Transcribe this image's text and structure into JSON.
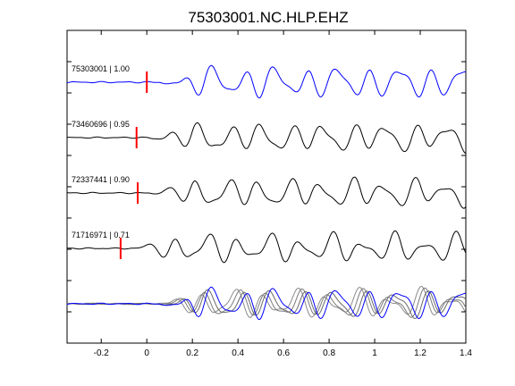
{
  "chart_data": {
    "type": "line",
    "title": "75303001.NC.HLP.EHZ",
    "xlabel": "",
    "ylabel": "",
    "xlim": [
      -0.35,
      1.4
    ],
    "xticks": [
      -0.2,
      0,
      0.2,
      0.4,
      0.6,
      0.8,
      1,
      1.2,
      1.4
    ],
    "xtick_labels": [
      "-0.2",
      "0",
      "0.2",
      "0.4",
      "0.6",
      "0.8",
      "1",
      "1.2",
      "1.4"
    ],
    "grid": false,
    "pick_color": "#ff0000",
    "traces": [
      {
        "label": "75303001 | 1.00",
        "event": "75303001",
        "correlation": 1.0,
        "pick_time": 0.0,
        "color": "#0000ff",
        "amplitude": 1.0
      },
      {
        "label": "73460696 | 0.95",
        "event": "73460696",
        "correlation": 0.95,
        "pick_time": -0.045,
        "color": "#000000",
        "amplitude": 0.9
      },
      {
        "label": "72337441 | 0.90",
        "event": "72337441",
        "correlation": 0.9,
        "pick_time": -0.04,
        "color": "#000000",
        "amplitude": 0.9
      },
      {
        "label": "71716971 | 0.71",
        "event": "71716971",
        "correlation": 0.71,
        "pick_time": -0.115,
        "color": "#000000",
        "amplitude": 0.9
      }
    ],
    "stack": {
      "colors": [
        "#0000ff",
        "#6a6a6a",
        "#7a7a7a",
        "#8a8a8a"
      ]
    }
  }
}
